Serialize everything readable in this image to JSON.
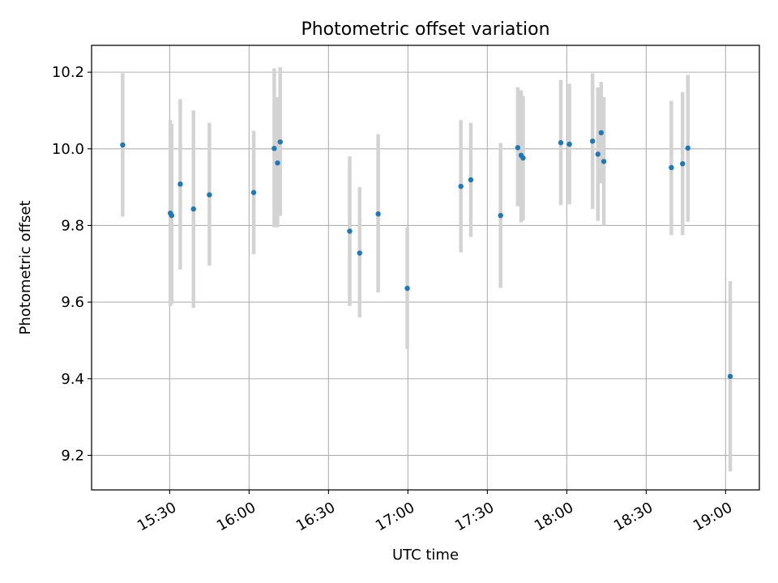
{
  "chart_data": {
    "type": "scatter",
    "title": "Photometric offset variation",
    "xlabel": "UTC time",
    "ylabel": "Photometric offset",
    "x_unit": "UTC time (HH:MM)",
    "xlim": [
      "15:00:30",
      "19:12:45"
    ],
    "ylim": [
      9.11,
      10.27
    ],
    "grid": true,
    "x_ticks": [
      "15:30",
      "16:00",
      "16:30",
      "17:00",
      "17:30",
      "18:00",
      "18:30",
      "19:00"
    ],
    "y_ticks": [
      9.2,
      9.4,
      9.6,
      9.8,
      10.0,
      10.2
    ],
    "y_tick_labels": [
      "9.2",
      "9.4",
      "9.6",
      "9.8",
      "10.0",
      "10.2"
    ],
    "marker_color": "#1f77b4",
    "errorbar_color": "#d3d3d3",
    "points": [
      {
        "t": "15:12:15",
        "y": 10.01,
        "err_lo": 9.823,
        "err_hi": 10.197
      },
      {
        "t": "15:30:15",
        "y": 9.832,
        "err_lo": 9.59,
        "err_hi": 10.075
      },
      {
        "t": "15:30:45",
        "y": 9.826,
        "err_lo": 9.595,
        "err_hi": 10.065
      },
      {
        "t": "15:34:00",
        "y": 9.908,
        "err_lo": 9.685,
        "err_hi": 10.13
      },
      {
        "t": "15:39:00",
        "y": 9.843,
        "err_lo": 9.585,
        "err_hi": 10.1
      },
      {
        "t": "15:45:00",
        "y": 9.88,
        "err_lo": 9.695,
        "err_hi": 10.068
      },
      {
        "t": "16:01:45",
        "y": 9.886,
        "err_lo": 9.725,
        "err_hi": 10.047
      },
      {
        "t": "16:09:30",
        "y": 10.001,
        "err_lo": 9.795,
        "err_hi": 10.21
      },
      {
        "t": "16:10:45",
        "y": 9.963,
        "err_lo": 9.795,
        "err_hi": 10.135
      },
      {
        "t": "16:11:45",
        "y": 10.018,
        "err_lo": 9.825,
        "err_hi": 10.213
      },
      {
        "t": "16:38:00",
        "y": 9.785,
        "err_lo": 9.59,
        "err_hi": 9.98
      },
      {
        "t": "16:41:45",
        "y": 9.728,
        "err_lo": 9.56,
        "err_hi": 9.9
      },
      {
        "t": "16:48:45",
        "y": 9.83,
        "err_lo": 9.625,
        "err_hi": 10.038
      },
      {
        "t": "16:59:45",
        "y": 9.636,
        "err_lo": 9.478,
        "err_hi": 9.795
      },
      {
        "t": "17:20:00",
        "y": 9.902,
        "err_lo": 9.73,
        "err_hi": 10.075
      },
      {
        "t": "17:23:45",
        "y": 9.919,
        "err_lo": 9.77,
        "err_hi": 10.068
      },
      {
        "t": "17:35:00",
        "y": 9.826,
        "err_lo": 9.637,
        "err_hi": 10.015
      },
      {
        "t": "17:41:30",
        "y": 10.003,
        "err_lo": 9.85,
        "err_hi": 10.16
      },
      {
        "t": "17:42:45",
        "y": 9.983,
        "err_lo": 9.808,
        "err_hi": 10.153
      },
      {
        "t": "17:43:30",
        "y": 9.976,
        "err_lo": 9.813,
        "err_hi": 10.138
      },
      {
        "t": "17:57:45",
        "y": 10.016,
        "err_lo": 9.853,
        "err_hi": 10.18
      },
      {
        "t": "18:01:00",
        "y": 10.012,
        "err_lo": 9.855,
        "err_hi": 10.17
      },
      {
        "t": "18:09:45",
        "y": 10.02,
        "err_lo": 9.843,
        "err_hi": 10.197
      },
      {
        "t": "18:11:45",
        "y": 9.986,
        "err_lo": 9.812,
        "err_hi": 10.16
      },
      {
        "t": "18:13:00",
        "y": 10.042,
        "err_lo": 9.91,
        "err_hi": 10.175
      },
      {
        "t": "18:14:00",
        "y": 9.967,
        "err_lo": 9.8,
        "err_hi": 10.135
      },
      {
        "t": "18:39:30",
        "y": 9.951,
        "err_lo": 9.775,
        "err_hi": 10.125
      },
      {
        "t": "18:43:45",
        "y": 9.961,
        "err_lo": 9.775,
        "err_hi": 10.148
      },
      {
        "t": "18:45:45",
        "y": 10.002,
        "err_lo": 9.81,
        "err_hi": 10.193
      },
      {
        "t": "19:01:45",
        "y": 9.406,
        "err_lo": 9.158,
        "err_hi": 9.655
      }
    ]
  }
}
